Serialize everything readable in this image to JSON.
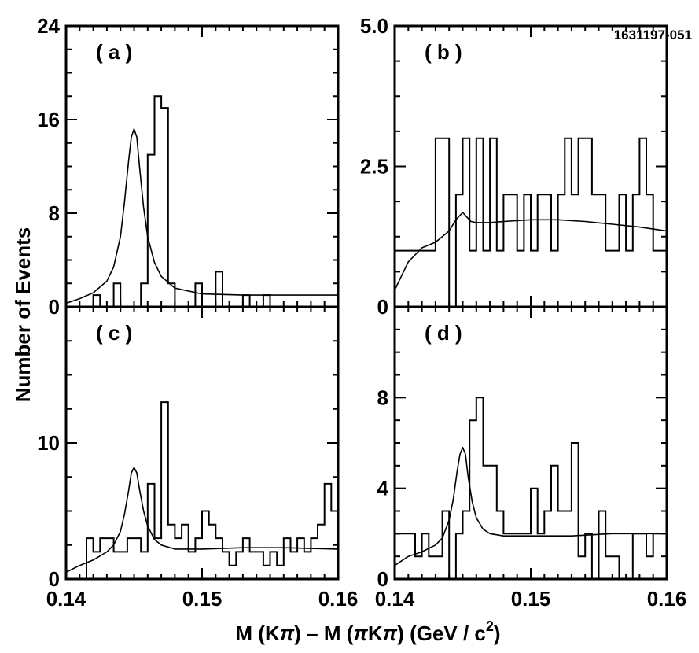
{
  "figure_id": "1631197-051",
  "ylabel": "Number of Events",
  "xlabel": {
    "part1": "M (K",
    "pi1": "π",
    "part2": ") – M (",
    "pi2": "π",
    "part3": "K",
    "pi3": "π",
    "part4": ") (GeV / c",
    "sup": "2",
    "part5": ")"
  },
  "chart_data": [
    {
      "panel": "a",
      "label": "( a )",
      "type": "histogram",
      "xlim": [
        0.14,
        0.16
      ],
      "ylim": [
        0,
        24
      ],
      "yticks": [
        0,
        8,
        16,
        24
      ],
      "bin_width": 0.0005,
      "counts": [
        0,
        0,
        0,
        0,
        1,
        0,
        0,
        2,
        0,
        0,
        0,
        2,
        13,
        18,
        17,
        2,
        0,
        0,
        0,
        2,
        0,
        0,
        3,
        0,
        0,
        0,
        1,
        0,
        0,
        1,
        0,
        0,
        0,
        0,
        0,
        0,
        0,
        0,
        0,
        0
      ],
      "fit_curve": {
        "x": [
          0.14,
          0.141,
          0.142,
          0.143,
          0.1435,
          0.144,
          0.1443,
          0.1446,
          0.1448,
          0.145,
          0.1452,
          0.1454,
          0.1457,
          0.146,
          0.1465,
          0.147,
          0.148,
          0.15,
          0.153,
          0.156,
          0.16
        ],
        "y": [
          0.3,
          0.7,
          1.2,
          2.2,
          3.4,
          6.0,
          9.0,
          12.5,
          14.5,
          15.2,
          14.5,
          12.0,
          8.5,
          6.0,
          3.8,
          2.6,
          1.6,
          1.1,
          1.0,
          1.0,
          1.0
        ]
      }
    },
    {
      "panel": "b",
      "label": "( b )",
      "type": "histogram",
      "xlim": [
        0.14,
        0.16
      ],
      "ylim": [
        0,
        5.0
      ],
      "yticks": [
        0,
        2.5,
        5.0
      ],
      "ytick_labels": [
        "0",
        "2.5",
        "5.0"
      ],
      "bin_width": 0.0005,
      "counts": [
        1,
        1,
        1,
        1,
        1,
        1,
        3,
        3,
        0,
        2,
        3,
        1,
        3,
        1,
        3,
        1,
        2,
        2,
        1,
        2,
        1,
        2,
        2,
        1,
        2,
        3,
        2,
        3,
        3,
        2,
        2,
        1,
        1,
        2,
        1,
        2,
        3,
        2,
        1,
        1
      ],
      "fit_curve": {
        "x": [
          0.14,
          0.141,
          0.142,
          0.143,
          0.144,
          0.1445,
          0.145,
          0.1453,
          0.1456,
          0.146,
          0.147,
          0.148,
          0.15,
          0.152,
          0.154,
          0.156,
          0.158,
          0.16
        ],
        "y": [
          0.3,
          0.8,
          1.05,
          1.15,
          1.35,
          1.55,
          1.68,
          1.6,
          1.52,
          1.5,
          1.5,
          1.52,
          1.55,
          1.55,
          1.52,
          1.47,
          1.42,
          1.35
        ]
      }
    },
    {
      "panel": "c",
      "label": "( c )",
      "type": "histogram",
      "xlim": [
        0.14,
        0.16
      ],
      "ylim": [
        0,
        20
      ],
      "yticks": [
        0,
        10,
        20
      ],
      "ytick_labels": [
        "0",
        "10",
        ""
      ],
      "bin_width": 0.0005,
      "counts": [
        0,
        0,
        0,
        3,
        2,
        3,
        3,
        2,
        2,
        3,
        3,
        2,
        7,
        3,
        13,
        4,
        3,
        4,
        2,
        3,
        5,
        4,
        3,
        2,
        1,
        2,
        3,
        2,
        2,
        1,
        2,
        1,
        3,
        2,
        3,
        2,
        3,
        4,
        7,
        5
      ],
      "fit_curve": {
        "x": [
          0.14,
          0.141,
          0.142,
          0.143,
          0.1435,
          0.144,
          0.1443,
          0.1446,
          0.1448,
          0.145,
          0.1452,
          0.1454,
          0.1457,
          0.146,
          0.1465,
          0.147,
          0.148,
          0.15,
          0.153,
          0.156,
          0.16
        ],
        "y": [
          0.5,
          1.0,
          1.4,
          2.0,
          2.5,
          3.5,
          4.8,
          6.5,
          7.8,
          8.2,
          7.8,
          6.6,
          5.0,
          3.9,
          2.9,
          2.5,
          2.2,
          2.2,
          2.3,
          2.3,
          2.2
        ]
      }
    },
    {
      "panel": "d",
      "label": "( d )",
      "type": "histogram",
      "xlim": [
        0.14,
        0.16
      ],
      "ylim": [
        0,
        12
      ],
      "yticks": [
        0,
        4,
        8
      ],
      "ytick_labels": [
        "0",
        "4",
        "8"
      ],
      "bin_width": 0.0005,
      "counts": [
        2,
        2,
        2,
        1,
        2,
        1,
        1,
        3,
        0,
        2,
        3,
        7,
        8,
        5,
        5,
        3,
        2,
        2,
        2,
        2,
        4,
        2,
        3,
        5,
        3,
        3,
        6,
        1,
        2,
        0,
        3,
        1,
        1,
        0,
        0,
        2,
        2,
        1,
        2,
        2
      ],
      "fit_curve": {
        "x": [
          0.14,
          0.141,
          0.142,
          0.143,
          0.1435,
          0.144,
          0.1443,
          0.1446,
          0.1448,
          0.145,
          0.1452,
          0.1454,
          0.1457,
          0.146,
          0.1465,
          0.147,
          0.148,
          0.15,
          0.153,
          0.156,
          0.16
        ],
        "y": [
          0.6,
          1.0,
          1.2,
          1.5,
          1.8,
          2.6,
          3.5,
          4.8,
          5.5,
          5.8,
          5.5,
          4.5,
          3.4,
          2.7,
          2.2,
          2.0,
          1.9,
          1.9,
          1.9,
          2.0,
          2.0
        ]
      }
    }
  ],
  "xticks": [
    0.14,
    0.15,
    0.16
  ],
  "xtick_labels": [
    "0.14",
    "0.15",
    "0.16"
  ]
}
